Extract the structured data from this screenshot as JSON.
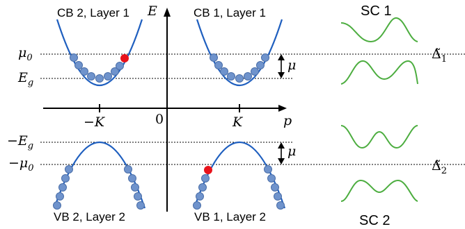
{
  "diagram": {
    "band_labels": {
      "cb2": "CB 2, Layer 1",
      "cb1": "CB 1, Layer 1",
      "vb2": "VB 2, Layer 2",
      "vb1": "VB 1, Layer 2"
    },
    "sc_labels": {
      "sc1": "SC 1",
      "sc2": "SC 2"
    },
    "axes": {
      "energy": "E",
      "momentum": "p",
      "origin": "0"
    },
    "ticks": {
      "minus_k": "−K",
      "k": "K"
    },
    "levels": {
      "mu0": {
        "base": "μ",
        "sub": "0"
      },
      "eg": {
        "base": "E",
        "sub": "g"
      },
      "neg_eg": {
        "base": "−E",
        "sub": "g"
      },
      "neg_mu0": {
        "base": "−μ",
        "sub": "0"
      }
    },
    "mu_label": "μ",
    "gap_labels": {
      "delta1": {
        "base": "Δ̃",
        "sub": "1"
      },
      "delta2": {
        "base": "Δ̃",
        "sub": "2"
      }
    },
    "colors": {
      "band": "#1f5fbf",
      "electron": "#6f93cc",
      "electron_edge": "#4a6ea8",
      "highlight": "#e8121b",
      "sc_curve": "#4cad3f",
      "axis": "#000000"
    }
  }
}
